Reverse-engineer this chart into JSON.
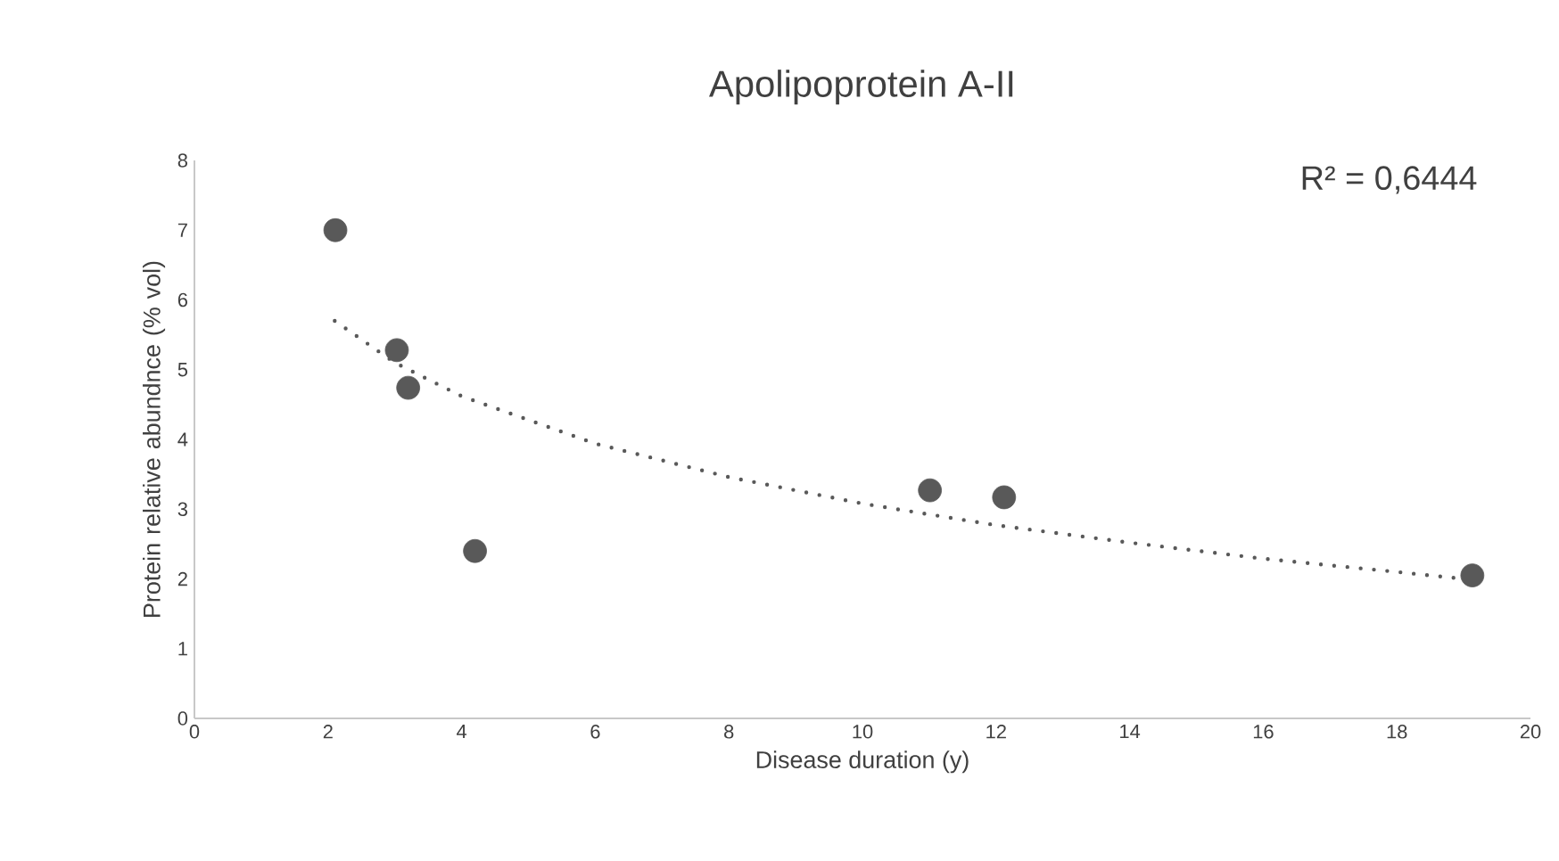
{
  "chart_data": {
    "type": "scatter",
    "title": "Apolipoprotein A-II",
    "xlabel": "Disease duration (y)",
    "ylabel": "Protein relative abundnce (% vol)",
    "annotations": [
      "R² = 0,6444"
    ],
    "xlim": [
      0,
      20
    ],
    "xticks": [
      0,
      2,
      4,
      6,
      8,
      10,
      12,
      14,
      16,
      18,
      20
    ],
    "ylim": [
      0,
      8
    ],
    "yticks": [
      0,
      1,
      2,
      3,
      4,
      5,
      6,
      7,
      8
    ],
    "grid": false,
    "series": [
      {
        "color": "#595959",
        "marker": "circle",
        "x": [
          2.11,
          3.03,
          3.2,
          4.2,
          11.01,
          12.12,
          19.13
        ],
        "values": [
          7.0,
          5.28,
          4.74,
          2.4,
          3.27,
          3.17,
          2.05
        ]
      },
      {
        "type": "line",
        "color": "#595959",
        "marker": "none",
        "line_style": "dotted",
        "x": [
          2.1,
          3,
          4,
          6,
          8,
          10,
          12,
          14,
          16,
          18,
          19.1
        ],
        "values": [
          5.7,
          5.1,
          4.62,
          3.94,
          3.46,
          3.08,
          2.77,
          2.52,
          2.29,
          2.1,
          1.99
        ]
      }
    ]
  }
}
